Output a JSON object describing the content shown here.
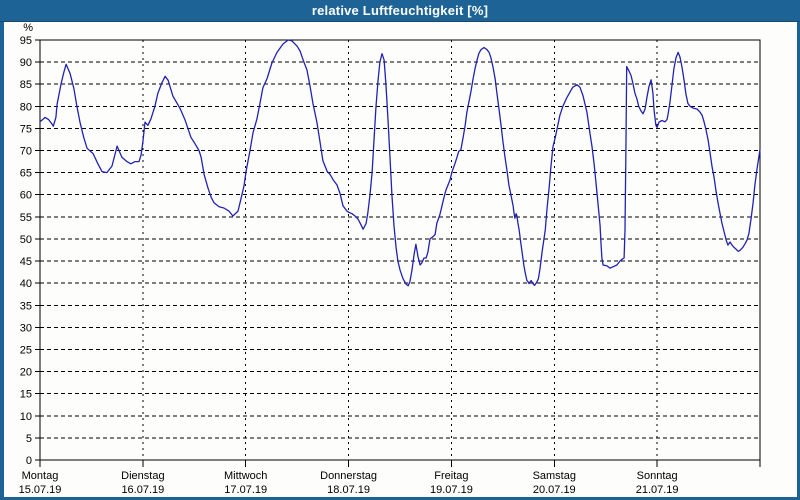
{
  "window": {
    "title": "relative Luftfeuchtigkeit [%]"
  },
  "colors": {
    "titlebar": "#1d6396",
    "window_border": "#1d6396",
    "content_bg": "#fdfdfb",
    "plot_bg": "#ffffff",
    "grid": "#000000",
    "frame": "#000000",
    "line": "#2222b2",
    "label": "#000000",
    "title_text": "#ffffff"
  },
  "chart_data": {
    "type": "line",
    "title": "relative Luftfeuchtigkeit [%]",
    "ylabel": "%",
    "xlabel": "",
    "legend": "none",
    "grid": "dashed",
    "y_axis": {
      "min": 0,
      "max": 95,
      "step": 5,
      "unit": "%",
      "ticks": [
        0,
        5,
        10,
        15,
        20,
        25,
        30,
        35,
        40,
        45,
        50,
        55,
        60,
        65,
        70,
        75,
        80,
        85,
        90,
        95
      ]
    },
    "x_axis": {
      "unit": "hours",
      "range": [
        0,
        168
      ],
      "hours_per_day": 24,
      "days": [
        {
          "label": "Montag",
          "date": "15.07.19"
        },
        {
          "label": "Dienstag",
          "date": "16.07.19"
        },
        {
          "label": "Mittwoch",
          "date": "17.07.19"
        },
        {
          "label": "Donnerstag",
          "date": "18.07.19"
        },
        {
          "label": "Freitag",
          "date": "19.07.19"
        },
        {
          "label": "Samstag",
          "date": "20.07.19"
        },
        {
          "label": "Sonntag",
          "date": "21.07.19"
        }
      ]
    },
    "series": [
      {
        "name": "relative Luftfeuchtigkeit",
        "unit": "%",
        "color": "#2222b2",
        "points": [
          [
            0,
            76.5
          ],
          [
            0.6,
            77
          ],
          [
            1.2,
            77.5
          ],
          [
            2,
            77
          ],
          [
            2.8,
            76
          ],
          [
            3.1,
            75.5
          ],
          [
            3.7,
            77.5
          ],
          [
            4,
            80.5
          ],
          [
            4.9,
            85
          ],
          [
            5.5,
            87.5
          ],
          [
            6.1,
            89.5
          ],
          [
            7,
            87.5
          ],
          [
            7.9,
            84
          ],
          [
            8.6,
            80
          ],
          [
            9.3,
            76.5
          ],
          [
            10.2,
            73
          ],
          [
            11,
            70.5
          ],
          [
            12.4,
            69.3
          ],
          [
            13.5,
            67
          ],
          [
            14.5,
            65.2
          ],
          [
            15.6,
            65
          ],
          [
            16.8,
            66.5
          ],
          [
            18,
            71
          ],
          [
            19.1,
            68.5
          ],
          [
            20.3,
            67.5
          ],
          [
            21.2,
            67
          ],
          [
            22.2,
            67.5
          ],
          [
            23.1,
            67.5
          ],
          [
            23.6,
            69
          ],
          [
            24,
            72
          ],
          [
            24.5,
            76.4
          ],
          [
            25.2,
            75.7
          ],
          [
            25.9,
            77.2
          ],
          [
            26.8,
            80
          ],
          [
            27.5,
            83
          ],
          [
            28.5,
            85.4
          ],
          [
            29.2,
            86.8
          ],
          [
            29.9,
            85.9
          ],
          [
            31,
            82.3
          ],
          [
            32.7,
            79.5
          ],
          [
            33.8,
            77
          ],
          [
            34.5,
            75
          ],
          [
            35.2,
            73
          ],
          [
            36.2,
            71.5
          ],
          [
            37.1,
            70
          ],
          [
            37.6,
            68.5
          ],
          [
            38.3,
            64.6
          ],
          [
            39.2,
            61.5
          ],
          [
            39.9,
            59.5
          ],
          [
            40.6,
            58.2
          ],
          [
            41.8,
            57.3
          ],
          [
            42.9,
            57
          ],
          [
            44.1,
            56.3
          ],
          [
            45,
            55.2
          ],
          [
            46.2,
            56.3
          ],
          [
            46.9,
            59.1
          ],
          [
            47.6,
            62
          ],
          [
            48.1,
            65.3
          ],
          [
            49,
            70
          ],
          [
            49.7,
            74
          ],
          [
            50.6,
            77.1
          ],
          [
            51.3,
            80.6
          ],
          [
            52,
            84.2
          ],
          [
            53,
            86.3
          ],
          [
            54.1,
            89.8
          ],
          [
            55.3,
            92.2
          ],
          [
            56.7,
            94.1
          ],
          [
            57.9,
            95
          ],
          [
            58.8,
            94.8
          ],
          [
            60,
            93.6
          ],
          [
            60.7,
            92.5
          ],
          [
            61.4,
            90.5
          ],
          [
            62.3,
            88.2
          ],
          [
            63,
            84.6
          ],
          [
            63.7,
            80.6
          ],
          [
            64.6,
            76.4
          ],
          [
            65.3,
            72.1
          ],
          [
            66,
            67.7
          ],
          [
            67,
            65.3
          ],
          [
            67.7,
            64.6
          ],
          [
            68.4,
            63.4
          ],
          [
            69.3,
            62.2
          ],
          [
            70,
            60.3
          ],
          [
            70.7,
            57.5
          ],
          [
            71.6,
            56.3
          ],
          [
            72.1,
            56
          ],
          [
            72.8,
            55.7
          ],
          [
            73.5,
            55.2
          ],
          [
            74.2,
            54.5
          ],
          [
            74.9,
            53.2
          ],
          [
            75.4,
            52.2
          ],
          [
            76.1,
            53.5
          ],
          [
            76.5,
            56
          ],
          [
            77,
            60
          ],
          [
            77.5,
            65
          ],
          [
            77.9,
            72
          ],
          [
            78.4,
            80
          ],
          [
            78.9,
            86
          ],
          [
            79.3,
            90
          ],
          [
            79.8,
            91.9
          ],
          [
            80.3,
            90.5
          ],
          [
            80.7,
            85
          ],
          [
            81.2,
            77
          ],
          [
            81.7,
            68
          ],
          [
            82.1,
            60
          ],
          [
            82.6,
            53
          ],
          [
            83.1,
            48
          ],
          [
            83.5,
            45
          ],
          [
            84,
            43
          ],
          [
            84.7,
            41
          ],
          [
            85.4,
            39.8
          ],
          [
            85.9,
            39.4
          ],
          [
            86.3,
            40.3
          ],
          [
            86.8,
            43
          ],
          [
            87.3,
            46.5
          ],
          [
            87.7,
            48.8
          ],
          [
            88.2,
            46
          ],
          [
            88.7,
            44.1
          ],
          [
            89.1,
            44.6
          ],
          [
            89.6,
            45.7
          ],
          [
            90.1,
            45.7
          ],
          [
            90.5,
            47
          ],
          [
            91,
            50
          ],
          [
            91.7,
            50.5
          ],
          [
            92.2,
            51
          ],
          [
            92.6,
            53.6
          ],
          [
            93.3,
            55.5
          ],
          [
            93.8,
            57.5
          ],
          [
            94.3,
            59.5
          ],
          [
            94.7,
            61
          ],
          [
            95.2,
            62.2
          ],
          [
            95.7,
            63.4
          ],
          [
            96.1,
            65.1
          ],
          [
            96.8,
            67
          ],
          [
            97.3,
            68.5
          ],
          [
            97.7,
            69.8
          ],
          [
            98.2,
            70.2
          ],
          [
            98.7,
            72.8
          ],
          [
            99.2,
            75.6
          ],
          [
            99.6,
            78.7
          ],
          [
            100.1,
            81.1
          ],
          [
            100.6,
            83.5
          ],
          [
            101,
            86
          ],
          [
            101.5,
            88.5
          ],
          [
            102,
            90.5
          ],
          [
            102.4,
            92
          ],
          [
            102.9,
            92.8
          ],
          [
            103.6,
            93.3
          ],
          [
            104.3,
            92.8
          ],
          [
            104.8,
            92.2
          ],
          [
            105.2,
            91
          ],
          [
            105.7,
            88.9
          ],
          [
            106.2,
            86.3
          ],
          [
            106.6,
            83
          ],
          [
            107.1,
            79.4
          ],
          [
            107.6,
            75.6
          ],
          [
            108,
            72.1
          ],
          [
            108.5,
            68.5
          ],
          [
            109,
            65.3
          ],
          [
            109.4,
            62.2
          ],
          [
            109.9,
            59.9
          ],
          [
            110.4,
            57.5
          ],
          [
            110.6,
            55.9
          ],
          [
            110.8,
            54.7
          ],
          [
            111.1,
            55.7
          ],
          [
            111.3,
            55.2
          ],
          [
            111.5,
            53.6
          ],
          [
            111.8,
            52.1
          ],
          [
            112,
            50.5
          ],
          [
            112.2,
            48.9
          ],
          [
            112.5,
            47
          ],
          [
            112.7,
            45.5
          ],
          [
            112.9,
            44
          ],
          [
            113.2,
            42.5
          ],
          [
            113.4,
            41.5
          ],
          [
            113.6,
            40.6
          ],
          [
            113.9,
            40.3
          ],
          [
            114.1,
            39.9
          ],
          [
            114.6,
            40.6
          ],
          [
            115,
            39.9
          ],
          [
            115.4,
            39.5
          ],
          [
            115.9,
            40.2
          ],
          [
            116.3,
            41
          ],
          [
            116.7,
            43.4
          ],
          [
            117.2,
            47.4
          ],
          [
            117.9,
            52.1
          ],
          [
            118.3,
            56.8
          ],
          [
            118.8,
            61.5
          ],
          [
            119.2,
            66.3
          ],
          [
            119.7,
            70.9
          ],
          [
            120.2,
            72.8
          ],
          [
            120.6,
            74.7
          ],
          [
            121.3,
            78
          ],
          [
            122,
            80
          ],
          [
            122.9,
            81.9
          ],
          [
            123.6,
            83.1
          ],
          [
            124.3,
            84.3
          ],
          [
            125.3,
            84.9
          ],
          [
            126,
            84.3
          ],
          [
            126.7,
            82.4
          ],
          [
            127.6,
            78.7
          ],
          [
            128.3,
            74
          ],
          [
            128.8,
            70.9
          ],
          [
            129.3,
            67
          ],
          [
            129.7,
            62.9
          ],
          [
            130.2,
            58
          ],
          [
            130.7,
            53
          ],
          [
            130.9,
            49
          ],
          [
            131.1,
            45.7
          ],
          [
            131.4,
            44.1
          ],
          [
            132.3,
            43.9
          ],
          [
            133,
            43.4
          ],
          [
            133.7,
            43.7
          ],
          [
            134.6,
            44.1
          ],
          [
            135.3,
            45
          ],
          [
            135.8,
            45.4
          ],
          [
            136.3,
            45.7
          ],
          [
            136.5,
            52
          ],
          [
            136.7,
            70
          ],
          [
            136.9,
            89
          ],
          [
            137.4,
            88
          ],
          [
            137.9,
            87
          ],
          [
            138.3,
            85.4
          ],
          [
            138.8,
            83
          ],
          [
            139.3,
            81.6
          ],
          [
            139.7,
            80
          ],
          [
            140.2,
            79
          ],
          [
            140.7,
            78.3
          ],
          [
            141.2,
            79.4
          ],
          [
            141.6,
            82
          ],
          [
            142.1,
            84.5
          ],
          [
            142.6,
            86
          ],
          [
            143,
            83
          ],
          [
            143.3,
            79
          ],
          [
            143.7,
            75.7
          ],
          [
            144,
            75.2
          ],
          [
            144.4,
            76.4
          ],
          [
            145.1,
            76.8
          ],
          [
            145.8,
            76.5
          ],
          [
            146.3,
            77
          ],
          [
            146.5,
            78
          ],
          [
            147,
            81
          ],
          [
            147.5,
            85
          ],
          [
            147.9,
            88.5
          ],
          [
            148.4,
            91
          ],
          [
            148.9,
            92.2
          ],
          [
            149.3,
            91.2
          ],
          [
            149.8,
            88.9
          ],
          [
            150.3,
            85.8
          ],
          [
            150.7,
            82.8
          ],
          [
            151.2,
            80.6
          ],
          [
            151.7,
            80
          ],
          [
            152.4,
            79.6
          ],
          [
            153.3,
            79.4
          ],
          [
            154,
            78.7
          ],
          [
            154.5,
            78
          ],
          [
            154.9,
            76.6
          ],
          [
            155.4,
            74.7
          ],
          [
            155.9,
            72.4
          ],
          [
            156.3,
            69.7
          ],
          [
            156.8,
            66.4
          ],
          [
            157.3,
            63.9
          ],
          [
            157.7,
            61
          ],
          [
            158.2,
            58.2
          ],
          [
            158.7,
            55.7
          ],
          [
            159.1,
            53.6
          ],
          [
            159.6,
            51.7
          ],
          [
            160.1,
            49.8
          ],
          [
            160.5,
            48.6
          ],
          [
            161,
            49.3
          ],
          [
            161.5,
            48.6
          ],
          [
            161.9,
            48.1
          ],
          [
            162.4,
            47.7
          ],
          [
            162.9,
            47.2
          ],
          [
            163.3,
            47.4
          ],
          [
            164,
            48.1
          ],
          [
            164.5,
            48.9
          ],
          [
            165,
            49.8
          ],
          [
            165.4,
            51.2
          ],
          [
            165.9,
            54.5
          ],
          [
            166.4,
            58.2
          ],
          [
            166.8,
            62.2
          ],
          [
            167.3,
            65.8
          ],
          [
            167.8,
            68.9
          ],
          [
            168,
            70.2
          ]
        ]
      }
    ]
  }
}
